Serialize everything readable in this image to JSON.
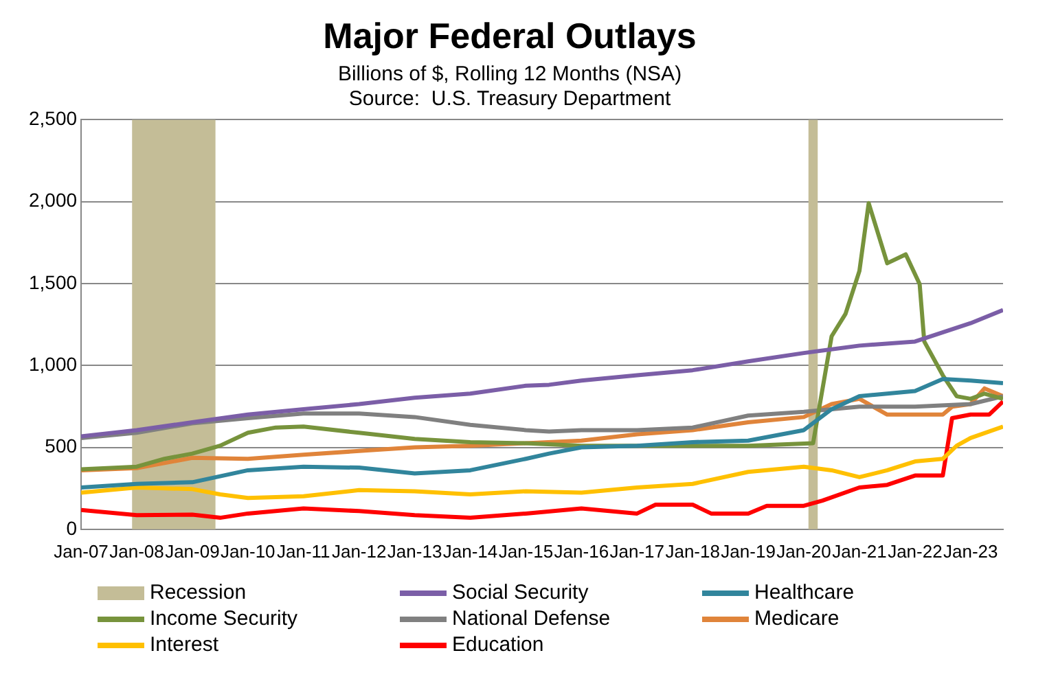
{
  "chart_data": {
    "type": "line",
    "title": "Major Federal Outlays",
    "subtitle": "Billions of $, Rolling 12 Months (NSA)",
    "annotations": [
      "Source:  U.S. Treasury Department"
    ],
    "xlim": [
      "2007-01",
      "2023-08"
    ],
    "xticks": [
      {
        "value": "2007-01",
        "label": "Jan-07"
      },
      {
        "value": "2008-01",
        "label": "Jan-08"
      },
      {
        "value": "2009-01",
        "label": "Jan-09"
      },
      {
        "value": "2010-01",
        "label": "Jan-10"
      },
      {
        "value": "2011-01",
        "label": "Jan-11"
      },
      {
        "value": "2012-01",
        "label": "Jan-12"
      },
      {
        "value": "2013-01",
        "label": "Jan-13"
      },
      {
        "value": "2014-01",
        "label": "Jan-14"
      },
      {
        "value": "2015-01",
        "label": "Jan-15"
      },
      {
        "value": "2016-01",
        "label": "Jan-16"
      },
      {
        "value": "2017-01",
        "label": "Jan-17"
      },
      {
        "value": "2018-01",
        "label": "Jan-18"
      },
      {
        "value": "2019-01",
        "label": "Jan-19"
      },
      {
        "value": "2020-01",
        "label": "Jan-20"
      },
      {
        "value": "2021-01",
        "label": "Jan-21"
      },
      {
        "value": "2022-01",
        "label": "Jan-22"
      },
      {
        "value": "2023-01",
        "label": "Jan-23"
      }
    ],
    "ylim": [
      0,
      2500
    ],
    "yticks": [
      0,
      500,
      {
        "value": 1000,
        "label": "1,000"
      },
      {
        "value": 1500,
        "label": "1,500"
      },
      {
        "value": 2000,
        "label": "2,000"
      },
      {
        "value": 2500,
        "label": "2,500"
      }
    ],
    "grid": "y",
    "legend": "bottom",
    "marker": "none",
    "line_style": "solid",
    "bands": [
      {
        "axis": "x",
        "from": "2007-12",
        "to": "2009-06",
        "label": "Recession",
        "color": "#c4bd97"
      },
      {
        "axis": "x",
        "from": "2020-02",
        "to": "2020-04",
        "color": "#c4bd97"
      }
    ],
    "series": [
      {
        "name": "Social Security",
        "color": "#7b5ea7",
        "x": [
          "2007-01",
          "2008-01",
          "2009-01",
          "2010-01",
          "2011-01",
          "2012-01",
          "2013-01",
          "2014-01",
          "2015-01",
          "2015-06",
          "2016-01",
          "2017-01",
          "2018-01",
          "2019-01",
          "2020-01",
          "2021-01",
          "2022-01",
          "2023-01",
          "2023-08"
        ],
        "values": [
          567,
          605,
          653,
          700,
          733,
          764,
          803,
          828,
          876,
          882,
          908,
          940,
          971,
          1025,
          1076,
          1121,
          1146,
          1258,
          1338
        ]
      },
      {
        "name": "Healthcare",
        "color": "#31859c",
        "x": [
          "2007-01",
          "2008-01",
          "2009-01",
          "2010-01",
          "2011-01",
          "2012-01",
          "2013-01",
          "2014-01",
          "2015-01",
          "2015-06",
          "2016-01",
          "2017-01",
          "2018-01",
          "2019-01",
          "2020-01",
          "2020-07",
          "2021-01",
          "2022-01",
          "2022-07",
          "2023-01",
          "2023-08"
        ],
        "values": [
          255,
          277,
          287,
          360,
          382,
          376,
          341,
          360,
          430,
          462,
          500,
          510,
          532,
          541,
          605,
          733,
          812,
          844,
          917,
          908,
          892
        ]
      },
      {
        "name": "Income Security",
        "color": "#77933c",
        "x": [
          "2007-01",
          "2008-01",
          "2008-07",
          "2009-01",
          "2009-07",
          "2010-01",
          "2010-07",
          "2011-01",
          "2012-01",
          "2013-01",
          "2014-01",
          "2015-01",
          "2016-01",
          "2017-01",
          "2018-01",
          "2019-01",
          "2020-03",
          "2020-07",
          "2020-10",
          "2021-01",
          "2021-03",
          "2021-07",
          "2021-11",
          "2022-02",
          "2022-03",
          "2022-07",
          "2022-10",
          "2023-01",
          "2023-04",
          "2023-08"
        ],
        "values": [
          366,
          382,
          430,
          462,
          510,
          589,
          621,
          627,
          589,
          551,
          532,
          525,
          510,
          510,
          510,
          510,
          525,
          1178,
          1315,
          1577,
          1991,
          1624,
          1678,
          1497,
          1146,
          940,
          812,
          796,
          828,
          796
        ]
      },
      {
        "name": "National Defense",
        "color": "#808080",
        "x": [
          "2007-01",
          "2008-01",
          "2009-01",
          "2010-01",
          "2011-01",
          "2012-01",
          "2013-01",
          "2014-01",
          "2015-01",
          "2015-06",
          "2016-01",
          "2017-01",
          "2018-01",
          "2019-01",
          "2020-01",
          "2021-01",
          "2022-01",
          "2023-01",
          "2023-08"
        ],
        "values": [
          557,
          589,
          647,
          678,
          707,
          707,
          685,
          637,
          605,
          596,
          605,
          605,
          621,
          694,
          717,
          748,
          748,
          764,
          812
        ]
      },
      {
        "name": "Medicare",
        "color": "#e0843a",
        "x": [
          "2007-01",
          "2008-01",
          "2009-01",
          "2010-01",
          "2011-01",
          "2012-01",
          "2013-01",
          "2014-01",
          "2015-01",
          "2016-01",
          "2017-01",
          "2018-01",
          "2019-01",
          "2020-01",
          "2020-07",
          "2021-01",
          "2021-07",
          "2022-01",
          "2022-07",
          "2022-09",
          "2023-01",
          "2023-04",
          "2023-08"
        ],
        "values": [
          360,
          373,
          436,
          430,
          455,
          478,
          500,
          510,
          525,
          541,
          580,
          605,
          653,
          685,
          764,
          796,
          700,
          700,
          700,
          748,
          764,
          860,
          812
        ]
      },
      {
        "name": "Interest",
        "color": "#ffc000",
        "x": [
          "2007-01",
          "2008-01",
          "2009-01",
          "2009-07",
          "2010-01",
          "2011-01",
          "2012-01",
          "2013-01",
          "2014-01",
          "2015-01",
          "2016-01",
          "2017-01",
          "2018-01",
          "2019-01",
          "2020-01",
          "2020-07",
          "2021-01",
          "2021-07",
          "2022-01",
          "2022-07",
          "2022-10",
          "2023-01",
          "2023-08"
        ],
        "values": [
          223,
          255,
          245,
          213,
          191,
          201,
          239,
          232,
          213,
          232,
          223,
          255,
          277,
          350,
          382,
          360,
          318,
          360,
          414,
          430,
          510,
          557,
          627
        ]
      },
      {
        "name": "Education",
        "color": "#ff0000",
        "x": [
          "2007-01",
          "2008-01",
          "2009-01",
          "2009-07",
          "2010-01",
          "2011-01",
          "2012-01",
          "2013-01",
          "2014-01",
          "2015-01",
          "2016-01",
          "2017-01",
          "2017-05",
          "2018-01",
          "2018-05",
          "2019-01",
          "2019-05",
          "2020-01",
          "2020-05",
          "2021-01",
          "2021-07",
          "2022-01",
          "2022-07",
          "2022-09",
          "2023-01",
          "2023-05",
          "2023-08"
        ],
        "values": [
          118,
          86,
          89,
          70,
          96,
          127,
          111,
          86,
          70,
          96,
          127,
          96,
          150,
          150,
          96,
          96,
          143,
          143,
          175,
          255,
          271,
          328,
          328,
          678,
          700,
          700,
          780
        ]
      }
    ]
  }
}
